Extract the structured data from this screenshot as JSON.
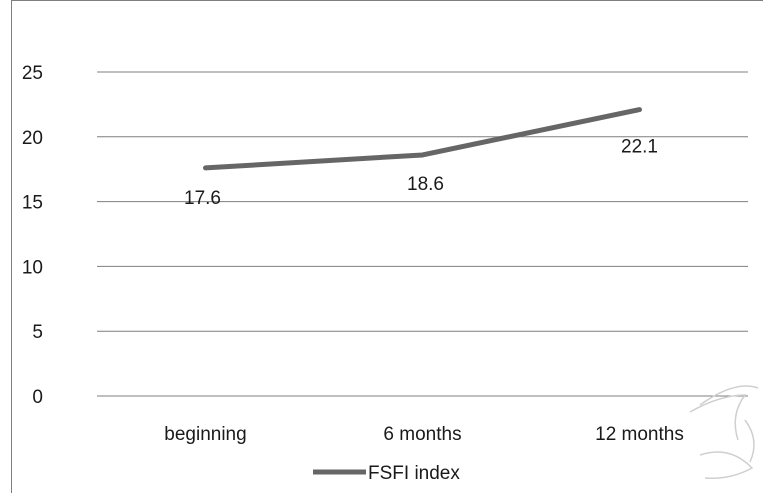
{
  "chart_data": {
    "type": "line",
    "categories": [
      "beginning",
      "6 months",
      "12 months"
    ],
    "series": [
      {
        "name": "FSFI index",
        "values": [
          17.6,
          18.6,
          22.1
        ],
        "color": "#666666"
      }
    ],
    "data_labels": [
      "17.6",
      "18.6",
      "22.1"
    ],
    "ylim": [
      0,
      25
    ],
    "yticks": [
      0,
      5,
      10,
      15,
      20,
      25
    ],
    "title": "",
    "xlabel": "",
    "ylabel": "",
    "grid": "horizontal",
    "legend_position": "bottom"
  },
  "colors": {
    "gridline": "#7f7f7f",
    "line": "#666666",
    "watermark": "#cfcfcf"
  }
}
